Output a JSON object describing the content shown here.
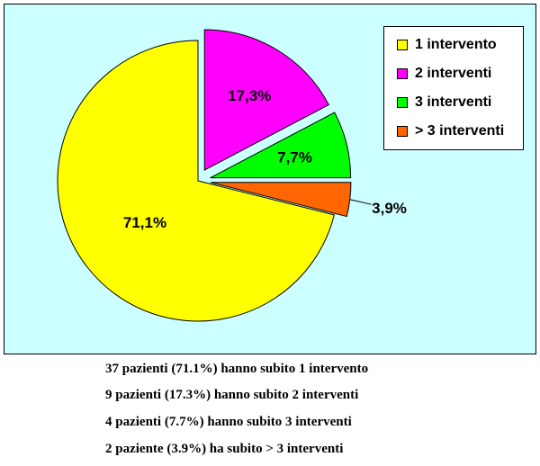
{
  "chart_data": {
    "type": "pie",
    "slices": [
      {
        "label": "1 intervento",
        "value": 71.1,
        "display": "71,1%",
        "color": "#ffff00"
      },
      {
        "label": "2 interventi",
        "value": 17.3,
        "display": "17,3%",
        "color": "#ff00ff"
      },
      {
        "label": "3 interventi",
        "value": 7.7,
        "display": "7,7%",
        "color": "#00ff00"
      },
      {
        "label": "> 3 interventi",
        "value": 3.9,
        "display": "3,9%",
        "color": "#ff6600"
      }
    ],
    "exploded": [
      "2 interventi",
      "3 interventi",
      "> 3 interventi"
    ],
    "legend_position": "top-right",
    "background_color": "#ccffff"
  },
  "legend": {
    "items": [
      {
        "label": "1 intervento",
        "color": "#ffff00"
      },
      {
        "label": "2 interventi",
        "color": "#ff00ff"
      },
      {
        "label": "3 interventi",
        "color": "#00ff00"
      },
      {
        "label": "> 3 interventi",
        "color": "#ff6600"
      }
    ]
  },
  "notes": [
    "37 pazienti (71.1%) hanno subito 1 intervento",
    "9 pazienti (17.3%) hanno subito 2 interventi",
    "4 pazienti (7.7%) hanno subito 3 interventi",
    "2 paziente (3.9%) ha subito > 3 interventi"
  ]
}
